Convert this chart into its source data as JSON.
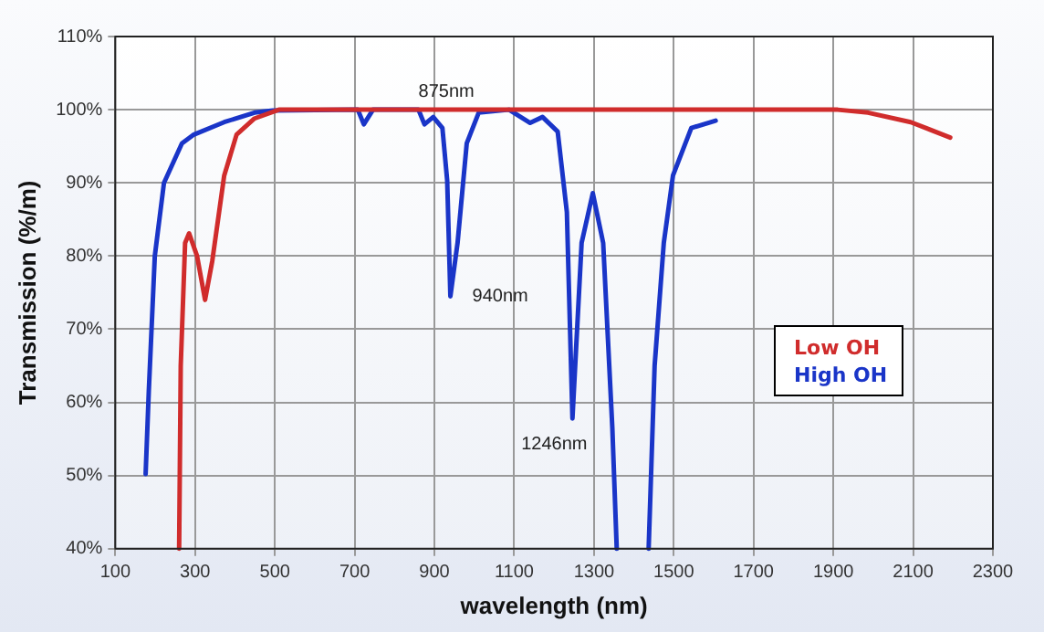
{
  "chart_data": {
    "type": "line",
    "xlabel": "wavelength (nm)",
    "ylabel": "Transmission (%/m)",
    "xlim": [
      100,
      2300
    ],
    "xticks": [
      100,
      300,
      500,
      700,
      900,
      1100,
      1300,
      1500,
      1700,
      1900,
      2100,
      2300
    ],
    "ylim": [
      40,
      110
    ],
    "yticks": [
      {
        "value": 40,
        "label": "40%"
      },
      {
        "value": 50,
        "label": "50%"
      },
      {
        "value": 60,
        "label": "60%"
      },
      {
        "value": 70,
        "label": "70%"
      },
      {
        "value": 80,
        "label": "80%"
      },
      {
        "value": 90,
        "label": "90%"
      },
      {
        "value": 100,
        "label": "100%"
      },
      {
        "value": 110,
        "label": "110%"
      }
    ],
    "grid": true,
    "legend": "right",
    "marker": "none",
    "line_style": "solid",
    "series": [
      {
        "name": "Low OH",
        "color": "#d02c2c",
        "x": [
          260,
          264,
          275,
          285,
          305,
          325,
          343,
          373,
          404,
          449,
          510,
          700,
          1100,
          1500,
          1911,
          1987,
          2094,
          2193
        ],
        "values": [
          40,
          65,
          81.8,
          83.1,
          80,
          74,
          79.3,
          91,
          96.6,
          98.8,
          100,
          100,
          100,
          100,
          100,
          99.6,
          98.3,
          96.2
        ]
      },
      {
        "name": "High OH",
        "color": "#1a35c8",
        "x": [
          176,
          184,
          199,
          222,
          267,
          297,
          373,
          449,
          495,
          708,
          723,
          746,
          860,
          875,
          897,
          920,
          932,
          940,
          958,
          981,
          1011,
          1087,
          1140,
          1171,
          1209,
          1232,
          1246,
          1269,
          1297,
          1323,
          1346,
          1357
        ],
        "values": [
          50.2,
          61.6,
          80,
          90,
          95.4,
          96.6,
          98.3,
          99.6,
          99.9,
          100,
          98,
          100,
          100,
          98,
          99,
          97.5,
          90.3,
          74.5,
          81.8,
          95.4,
          99.6,
          100,
          98.2,
          99,
          97,
          86,
          57.8,
          81.8,
          88.6,
          81.8,
          56.5,
          40
        ]
      },
      {
        "name": null,
        "color": "#1a35c8",
        "x": [
          1437,
          1452,
          1475,
          1498,
          1544,
          1605
        ],
        "values": [
          40,
          65,
          81.8,
          91,
          97.5,
          98.5
        ]
      }
    ],
    "annotations": [
      {
        "text": "875nm",
        "x": 875,
        "y": 98
      },
      {
        "text": "940nm",
        "x": 940,
        "y": 74.5
      },
      {
        "text": "1246nm",
        "x": 1246,
        "y": 57.8
      }
    ]
  }
}
